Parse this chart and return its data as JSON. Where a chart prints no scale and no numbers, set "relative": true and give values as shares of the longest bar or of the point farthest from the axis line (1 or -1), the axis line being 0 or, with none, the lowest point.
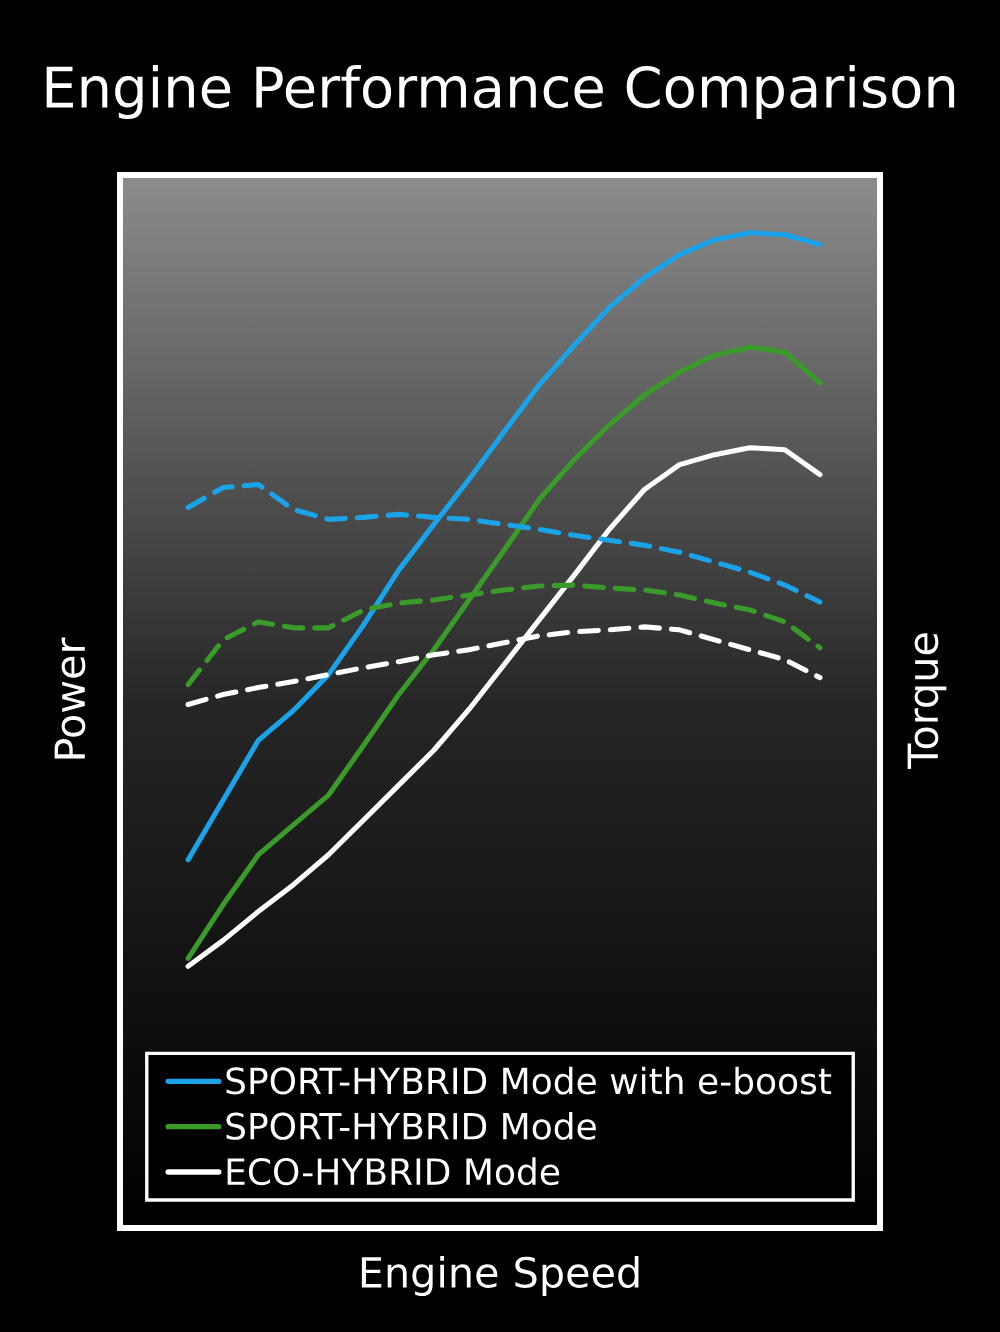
{
  "chart_data": {
    "type": "line",
    "title": "Engine Performance Comparison",
    "xlabel": "Engine Speed",
    "ylabel": "Power",
    "y2label": "Torque",
    "relative": true,
    "legend": "bottom",
    "categories": [
      null,
      null,
      null,
      null,
      null,
      null,
      null,
      null,
      null,
      null,
      null,
      null,
      null,
      null,
      null,
      null,
      null,
      null,
      null
    ],
    "series": [
      {
        "name": "SPORT-HYBRID Mode with e-boost",
        "color": "#1aa3e8",
        "line_style": "solid",
        "values": [
          0.37,
          0.43,
          0.49,
          0.52,
          0.556,
          0.606,
          0.661,
          0.707,
          0.752,
          0.8,
          0.847,
          0.887,
          0.925,
          0.955,
          0.978,
          0.993,
          1.0,
          0.998,
          0.988
        ]
      },
      {
        "name": "SPORT-HYBRID Mode",
        "color": "#3a9a2a",
        "line_style": "solid",
        "values": [
          0.271,
          0.325,
          0.375,
          0.405,
          0.435,
          0.485,
          0.536,
          0.581,
          0.631,
          0.681,
          0.732,
          0.772,
          0.807,
          0.837,
          0.86,
          0.877,
          0.885,
          0.88,
          0.849
        ]
      },
      {
        "name": "ECO-HYBRID Mode",
        "color": "#ffffff",
        "line_style": "solid",
        "values": [
          0.263,
          0.289,
          0.318,
          0.345,
          0.375,
          0.41,
          0.445,
          0.48,
          0.521,
          0.566,
          0.611,
          0.656,
          0.702,
          0.742,
          0.767,
          0.777,
          0.784,
          0.782,
          0.757
        ]
      },
      {
        "color": "#1aa3e8",
        "line_style": "dashed",
        "values": [
          0.724,
          0.744,
          0.747,
          0.722,
          0.712,
          0.714,
          0.717,
          0.714,
          0.712,
          0.707,
          0.702,
          0.696,
          0.691,
          0.686,
          0.679,
          0.669,
          0.659,
          0.646,
          0.629
        ]
      },
      {
        "color": "#3a9a2a",
        "line_style": "dashed",
        "values": [
          0.546,
          0.591,
          0.609,
          0.603,
          0.603,
          0.621,
          0.628,
          0.631,
          0.636,
          0.641,
          0.645,
          0.646,
          0.643,
          0.641,
          0.636,
          0.628,
          0.621,
          0.609,
          0.583
        ]
      },
      {
        "color": "#ffffff",
        "line_style": "dashed",
        "values": [
          0.526,
          0.536,
          0.543,
          0.549,
          0.556,
          0.563,
          0.569,
          0.576,
          0.581,
          0.588,
          0.595,
          0.599,
          0.601,
          0.604,
          0.601,
          0.591,
          0.581,
          0.571,
          0.553
        ]
      }
    ]
  }
}
